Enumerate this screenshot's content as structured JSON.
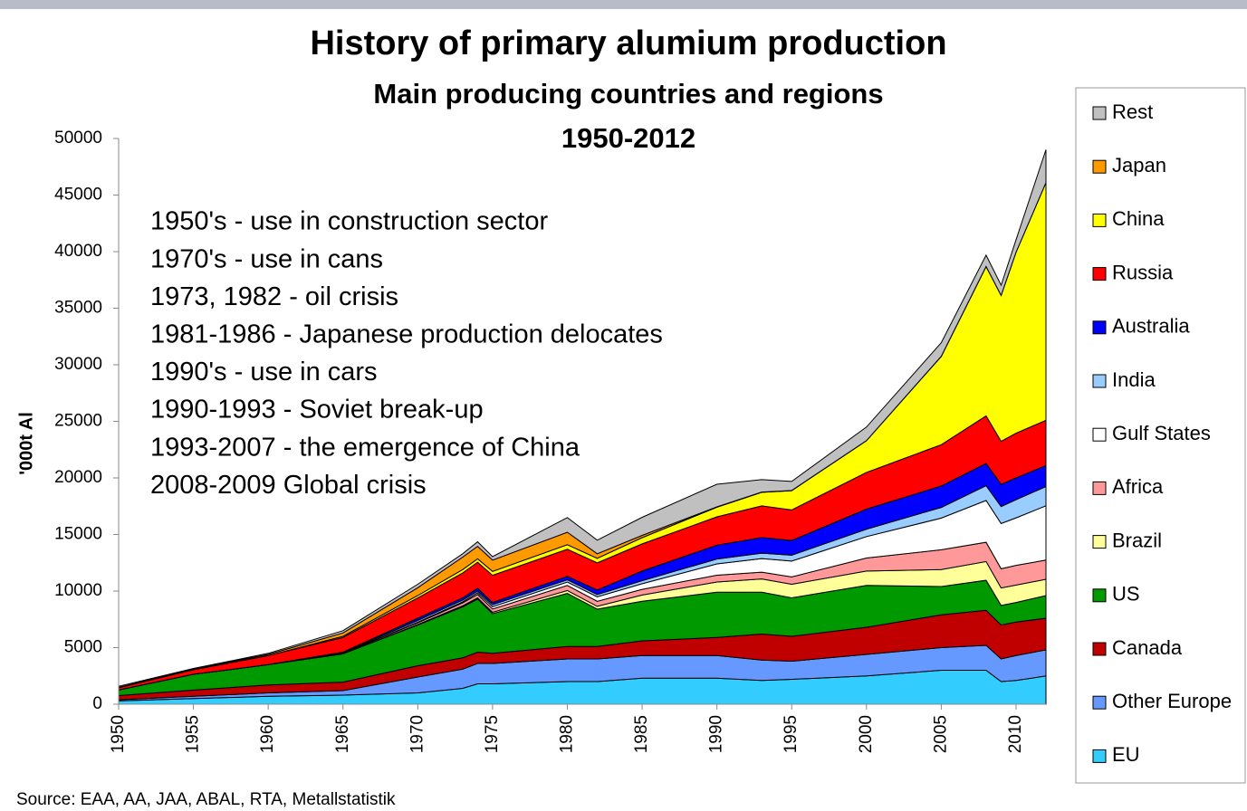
{
  "chart_data": {
    "type": "stacked_area",
    "title": "History of primary alumium production",
    "subtitle": [
      "Main producing countries and regions",
      "1950-2012"
    ],
    "y_label": "'000t Al",
    "source": "Source: EAA, AA, JAA, ABAL, RTA, Metallstatistik",
    "annotations": [
      "1950's - use in construction sector",
      "1970's - use in cans",
      "1973, 1982 - oil crisis",
      "1981-1986 - Japanese production delocates",
      "1990's - use in cars",
      "1990-1993 - Soviet break-up",
      "1993-2007 - the emergence of China",
      "2008-2009 Global crisis"
    ],
    "x": [
      1950,
      1955,
      1960,
      1965,
      1970,
      1973,
      1974,
      1975,
      1980,
      1982,
      1985,
      1990,
      1993,
      1995,
      2000,
      2005,
      2008,
      2009,
      2010,
      2012
    ],
    "xlim": [
      1950,
      2012
    ],
    "xticks": [
      1950,
      1955,
      1960,
      1965,
      1970,
      1975,
      1980,
      1985,
      1990,
      1995,
      2000,
      2005,
      2010
    ],
    "ylim": [
      0,
      50000
    ],
    "yticks": [
      0,
      5000,
      10000,
      15000,
      20000,
      25000,
      30000,
      35000,
      40000,
      45000,
      50000
    ],
    "legend": "right",
    "series": [
      {
        "name": "EU",
        "color": "#33ccff",
        "values": [
          300,
          500,
          700,
          800,
          1000,
          1400,
          1800,
          1800,
          2000,
          2000,
          2300,
          2300,
          2100,
          2200,
          2500,
          3000,
          3000,
          2000,
          2100,
          2500
        ]
      },
      {
        "name": "Other Europe",
        "color": "#6699ff",
        "values": [
          100,
          200,
          300,
          400,
          1400,
          1700,
          1800,
          1800,
          2000,
          2000,
          2000,
          2000,
          1800,
          1600,
          1900,
          2000,
          2200,
          2000,
          2200,
          2300
        ]
      },
      {
        "name": "Canada",
        "color": "#c00000",
        "values": [
          360,
          550,
          700,
          750,
          1000,
          1000,
          1000,
          900,
          1100,
          1100,
          1300,
          1600,
          2300,
          2200,
          2400,
          2900,
          3100,
          3000,
          2960,
          2800
        ]
      },
      {
        "name": "US",
        "color": "#009900",
        "values": [
          500,
          1400,
          1800,
          2500,
          3600,
          4500,
          4700,
          3500,
          4700,
          3300,
          3500,
          4000,
          3700,
          3400,
          3700,
          2500,
          2650,
          1730,
          1730,
          2000
        ]
      },
      {
        "name": "Brazil",
        "color": "#ffff99",
        "values": [
          0,
          0,
          0,
          0,
          50,
          100,
          100,
          120,
          250,
          250,
          550,
          900,
          1170,
          1200,
          1270,
          1500,
          1660,
          1540,
          1540,
          1440
        ]
      },
      {
        "name": "Africa",
        "color": "#ff9999",
        "values": [
          0,
          0,
          0,
          50,
          150,
          250,
          300,
          300,
          450,
          450,
          500,
          600,
          600,
          650,
          1150,
          1750,
          1700,
          1700,
          1740,
          1700
        ]
      },
      {
        "name": "Gulf States",
        "color": "#ffffff",
        "values": [
          0,
          0,
          0,
          0,
          50,
          100,
          150,
          200,
          300,
          400,
          500,
          1000,
          1200,
          1400,
          1900,
          2800,
          3700,
          4000,
          4200,
          4800
        ]
      },
      {
        "name": "India",
        "color": "#99ccff",
        "values": [
          0,
          0,
          0,
          50,
          150,
          150,
          150,
          170,
          200,
          200,
          270,
          430,
          480,
          520,
          650,
          940,
          1300,
          1500,
          1600,
          1700
        ]
      },
      {
        "name": "Australia",
        "color": "#0000ff",
        "values": [
          0,
          0,
          0,
          50,
          200,
          200,
          250,
          200,
          300,
          400,
          850,
          1230,
          1380,
          1300,
          1770,
          1900,
          1970,
          1960,
          1930,
          1860
        ]
      },
      {
        "name": "Russia",
        "color": "#ff0000",
        "values": [
          200,
          400,
          800,
          1300,
          1800,
          2200,
          2300,
          2400,
          2400,
          2400,
          2400,
          2500,
          2800,
          2700,
          3250,
          3650,
          4200,
          3800,
          3950,
          4000
        ]
      },
      {
        "name": "China",
        "color": "#ffff00",
        "values": [
          0,
          0,
          0,
          100,
          200,
          300,
          300,
          350,
          400,
          400,
          550,
          850,
          1200,
          1700,
          2800,
          7800,
          13200,
          12900,
          16000,
          21000
        ]
      },
      {
        "name": "Japan",
        "color": "#ff9900",
        "values": [
          25,
          60,
          100,
          300,
          700,
          1100,
          1100,
          1000,
          1100,
          400,
          200,
          30,
          20,
          20,
          10,
          10,
          10,
          5,
          5,
          5
        ]
      },
      {
        "name": "Rest",
        "color": "#c0c0c0",
        "values": [
          100,
          50,
          100,
          200,
          300,
          300,
          400,
          300,
          1300,
          1200,
          1600,
          2000,
          1100,
          800,
          1200,
          1200,
          1000,
          900,
          1100,
          2900
        ]
      }
    ]
  }
}
